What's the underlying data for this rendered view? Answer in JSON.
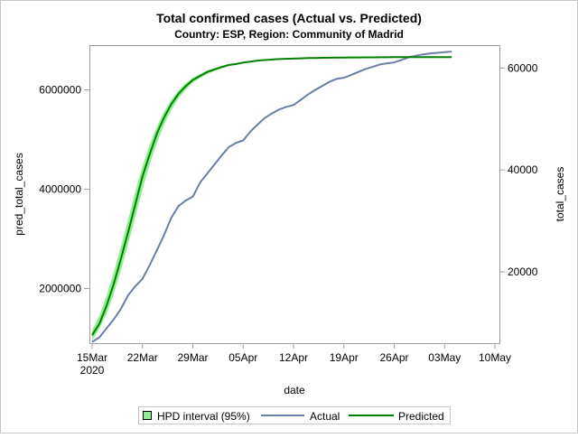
{
  "chart_data": {
    "type": "line",
    "title": "Total confirmed cases (Actual vs. Predicted)",
    "subtitle": "Country: ESP, Region: Community of Madrid",
    "xlabel": "date",
    "ylabel_left": "pred_total_cases",
    "ylabel_right": "total_cases",
    "x_ticks": [
      "15Mar",
      "22Mar",
      "29Mar",
      "05Apr",
      "12Apr",
      "19Apr",
      "26Apr",
      "03May",
      "10May"
    ],
    "x_tick_year": "2020",
    "xlim": [
      "2020-03-15",
      "2020-05-10"
    ],
    "y_left_ticks": [
      "2000000",
      "4000000",
      "6000000"
    ],
    "y_left_range": [
      900000,
      6900000
    ],
    "y_right_ticks": [
      "20000",
      "40000",
      "60000"
    ],
    "y_right_range": [
      6000,
      64500
    ],
    "grid": false,
    "legend_placement": "bottom",
    "legend": [
      {
        "label": "HPD interval (95%)",
        "type": "band",
        "color": "#90ee90"
      },
      {
        "label": "Actual",
        "type": "line",
        "color": "#6a7fa8"
      },
      {
        "label": "Predicted",
        "type": "line",
        "color": "#008000"
      }
    ],
    "x": [
      "2020-03-15",
      "2020-03-16",
      "2020-03-17",
      "2020-03-18",
      "2020-03-19",
      "2020-03-20",
      "2020-03-21",
      "2020-03-22",
      "2020-03-23",
      "2020-03-24",
      "2020-03-25",
      "2020-03-26",
      "2020-03-27",
      "2020-03-28",
      "2020-03-29",
      "2020-03-30",
      "2020-03-31",
      "2020-04-01",
      "2020-04-02",
      "2020-04-03",
      "2020-04-04",
      "2020-04-05",
      "2020-04-06",
      "2020-04-07",
      "2020-04-08",
      "2020-04-09",
      "2020-04-10",
      "2020-04-11",
      "2020-04-12",
      "2020-04-13",
      "2020-04-14",
      "2020-04-15",
      "2020-04-16",
      "2020-04-17",
      "2020-04-18",
      "2020-04-19",
      "2020-04-20",
      "2020-04-21",
      "2020-04-22",
      "2020-04-23",
      "2020-04-24",
      "2020-04-25",
      "2020-04-26",
      "2020-04-27",
      "2020-04-28",
      "2020-04-29",
      "2020-04-30",
      "2020-05-01",
      "2020-05-02",
      "2020-05-03",
      "2020-05-04"
    ],
    "series": [
      {
        "name": "Actual",
        "axis": "right",
        "color": "#6a7fa8",
        "values": [
          6250,
          7130,
          8900,
          10670,
          12740,
          15400,
          17170,
          18640,
          21300,
          24250,
          27200,
          30600,
          32900,
          34000,
          34750,
          37500,
          39300,
          41060,
          42830,
          44480,
          45300,
          45800,
          47560,
          48900,
          50200,
          51100,
          51860,
          52400,
          52750,
          53750,
          54800,
          55700,
          56500,
          57300,
          57880,
          58100,
          58640,
          59240,
          59820,
          60230,
          60700,
          60940,
          61110,
          61600,
          62130,
          62430,
          62700,
          62880,
          63000,
          63130,
          63240
        ]
      },
      {
        "name": "Predicted",
        "axis": "left",
        "color": "#008000",
        "values": [
          1060000,
          1290000,
          1650000,
          2090000,
          2600000,
          3130000,
          3690000,
          4260000,
          4700000,
          5120000,
          5440000,
          5710000,
          5920000,
          6070000,
          6200000,
          6280000,
          6360000,
          6410000,
          6460000,
          6500000,
          6520000,
          6550000,
          6570000,
          6590000,
          6600000,
          6610000,
          6620000,
          6625000,
          6630000,
          6635000,
          6640000,
          6642000,
          6645000,
          6647000,
          6649000,
          6650000,
          6652000,
          6653000,
          6654000,
          6655000,
          6656000,
          6657000,
          6658000,
          6658000,
          6659000,
          6659000,
          6660000,
          6660000,
          6660000,
          6660000,
          6660000
        ]
      },
      {
        "name": "HPD interval (95%)",
        "axis": "left",
        "type": "band",
        "color": "#90ee90",
        "lower": [
          960000,
          1190000,
          1490000,
          1890000,
          2370000,
          2890000,
          3440000,
          4000000,
          4500000,
          4930000,
          5300000,
          5590000,
          5830000,
          6000000,
          6140000,
          6240000,
          6320000,
          6380000,
          6430000,
          6480000,
          6500000,
          6535000,
          6560000,
          6580000,
          6592000,
          6603000,
          6613000,
          6619000,
          6625000,
          6630000,
          6635000,
          6638000,
          6641000,
          6643000,
          6645000,
          6647000,
          6649000,
          6650000,
          6651000,
          6652000,
          6653000,
          6654000,
          6655000,
          6656000,
          6657000,
          6657000,
          6658000,
          6658000,
          6658000,
          6658000,
          6658000
        ],
        "upper": [
          1160000,
          1450000,
          1850000,
          2320000,
          2840000,
          3380000,
          3950000,
          4460000,
          4890000,
          5260000,
          5560000,
          5800000,
          5990000,
          6130000,
          6240000,
          6320000,
          6390000,
          6440000,
          6480000,
          6515000,
          6535000,
          6560000,
          6580000,
          6597000,
          6607000,
          6617000,
          6626000,
          6631000,
          6636000,
          6640000,
          6644000,
          6646000,
          6648000,
          6650000,
          6652000,
          6653000,
          6655000,
          6656000,
          6657000,
          6658000,
          6659000,
          6660000,
          6661000,
          6661000,
          6662000,
          6662000,
          6662000,
          6662000,
          6662000,
          6662000,
          6662000
        ]
      }
    ]
  }
}
